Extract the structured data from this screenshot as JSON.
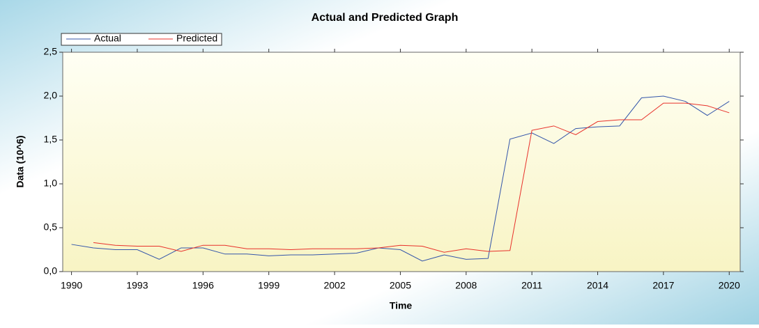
{
  "chart_data": {
    "type": "line",
    "title": "Actual and Predicted Graph",
    "x_label": "Time",
    "y_label": "Data (10^6)",
    "x": [
      1990,
      1991,
      1992,
      1993,
      1994,
      1995,
      1996,
      1997,
      1998,
      1999,
      2000,
      2001,
      2002,
      2003,
      2004,
      2005,
      2006,
      2007,
      2008,
      2009,
      2010,
      2011,
      2012,
      2013,
      2014,
      2015,
      2016,
      2017,
      2018,
      2019,
      2020
    ],
    "series": [
      {
        "name": "Actual",
        "color": "#3355aa",
        "values": [
          0.31,
          0.27,
          0.25,
          0.25,
          0.14,
          0.27,
          0.27,
          0.2,
          0.2,
          0.18,
          0.19,
          0.19,
          0.2,
          0.21,
          0.27,
          0.25,
          0.12,
          0.19,
          0.14,
          0.15,
          1.51,
          1.58,
          1.46,
          1.63,
          1.65,
          1.66,
          1.98,
          2.0,
          1.94,
          1.78,
          1.94
        ]
      },
      {
        "name": "Predicted",
        "color": "#e8302a",
        "values": [
          null,
          0.33,
          0.3,
          0.29,
          0.29,
          0.23,
          0.3,
          0.3,
          0.26,
          0.26,
          0.25,
          0.26,
          0.26,
          0.26,
          0.27,
          0.3,
          0.29,
          0.22,
          0.26,
          0.23,
          0.24,
          1.61,
          1.66,
          1.56,
          1.71,
          1.73,
          1.73,
          1.92,
          1.92,
          1.89,
          1.81
        ]
      }
    ],
    "xlim": [
      1989.6,
      2020.5
    ],
    "xticks": [
      1990,
      1993,
      1996,
      1999,
      2002,
      2005,
      2008,
      2011,
      2014,
      2017,
      2020
    ],
    "ylim": [
      0,
      2.5
    ],
    "yticks": [
      {
        "value": 0,
        "label": "0,0"
      },
      {
        "value": 0.5,
        "label": "0,5"
      },
      {
        "value": 1.0,
        "label": "1,0"
      },
      {
        "value": 1.5,
        "label": "1,5"
      },
      {
        "value": 2.0,
        "label": "2,0"
      },
      {
        "value": 2.5,
        "label": "2,5"
      }
    ],
    "legend": "top-left"
  }
}
